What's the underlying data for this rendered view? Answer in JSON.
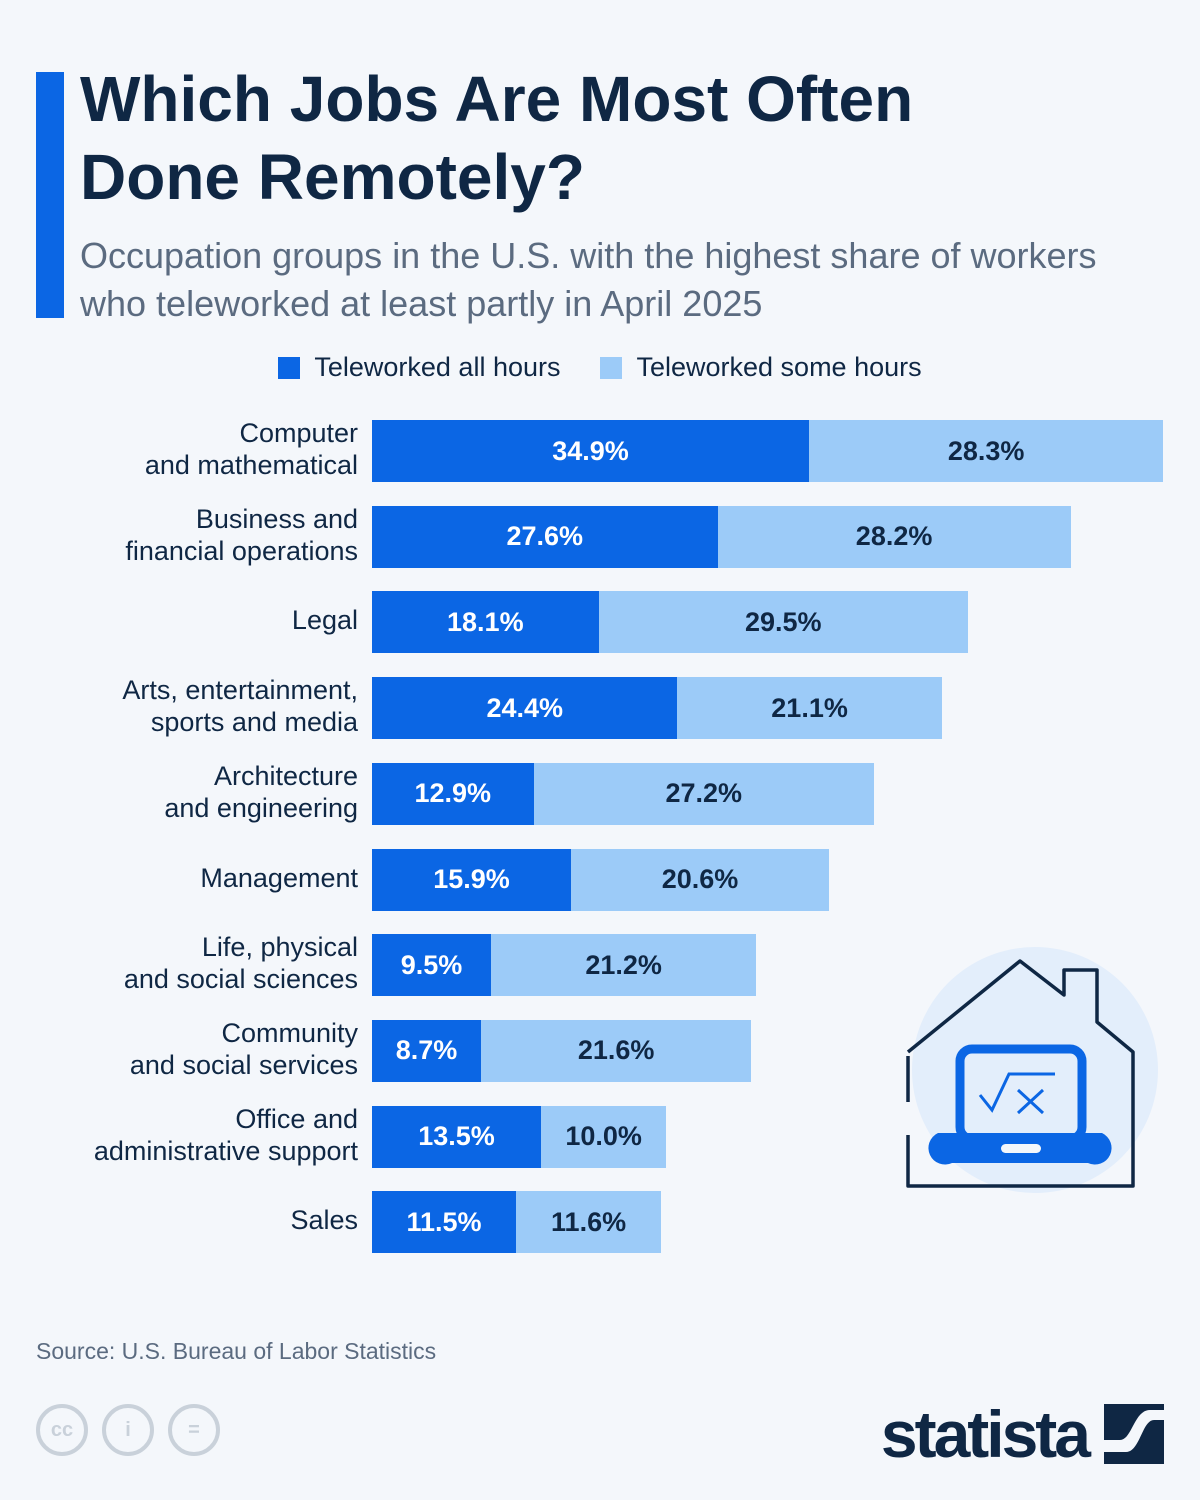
{
  "title": "Which Jobs Are Most Often Done Remotely?",
  "subtitle": "Occupation groups in the U.S. with the highest share of workers who teleworked at least partly in April 2025",
  "source": "Source: U.S. Bureau of Labor Statistics",
  "brand": "statista",
  "colors": {
    "accent": "#0b66e4",
    "light": "#9ccbf8",
    "text": "#0f2744",
    "background": "#f4f7fb"
  },
  "icons": [
    "house-laptop-icon",
    "cc-license-icon",
    "attribution-icon",
    "no-derivatives-icon",
    "statista-logo-icon"
  ],
  "chart_data": {
    "type": "bar",
    "orientation": "horizontal",
    "stacked": true,
    "legend_position": "top",
    "grid": false,
    "unit": "%",
    "categories": [
      [
        "Computer",
        "and mathematical"
      ],
      [
        "Business and",
        "financial operations"
      ],
      [
        "Legal"
      ],
      [
        "Arts, entertainment,",
        "sports and media"
      ],
      [
        "Architecture",
        "and engineering"
      ],
      [
        "Management"
      ],
      [
        "Life, physical",
        "and social sciences"
      ],
      [
        "Community",
        "and social services"
      ],
      [
        "Office and",
        "administrative support"
      ],
      [
        "Sales"
      ]
    ],
    "series": [
      {
        "name": "Teleworked all hours",
        "color": "#0b66e4",
        "values": [
          34.9,
          27.6,
          18.1,
          24.4,
          12.9,
          15.9,
          9.5,
          8.7,
          13.5,
          11.5
        ],
        "labels": [
          "34.9%",
          "27.6%",
          "18.1%",
          "24.4%",
          "12.9%",
          "15.9%",
          "9.5%",
          "8.7%",
          "13.5%",
          "11.5%"
        ]
      },
      {
        "name": "Teleworked some hours",
        "color": "#9ccbf8",
        "values": [
          28.3,
          28.2,
          29.5,
          21.1,
          27.2,
          20.6,
          21.2,
          21.6,
          10.0,
          11.6
        ],
        "labels": [
          "28.3%",
          "28.2%",
          "29.5%",
          "21.1%",
          "27.2%",
          "20.6%",
          "21.2%",
          "21.6%",
          "10.0%",
          "11.6%"
        ]
      }
    ]
  }
}
